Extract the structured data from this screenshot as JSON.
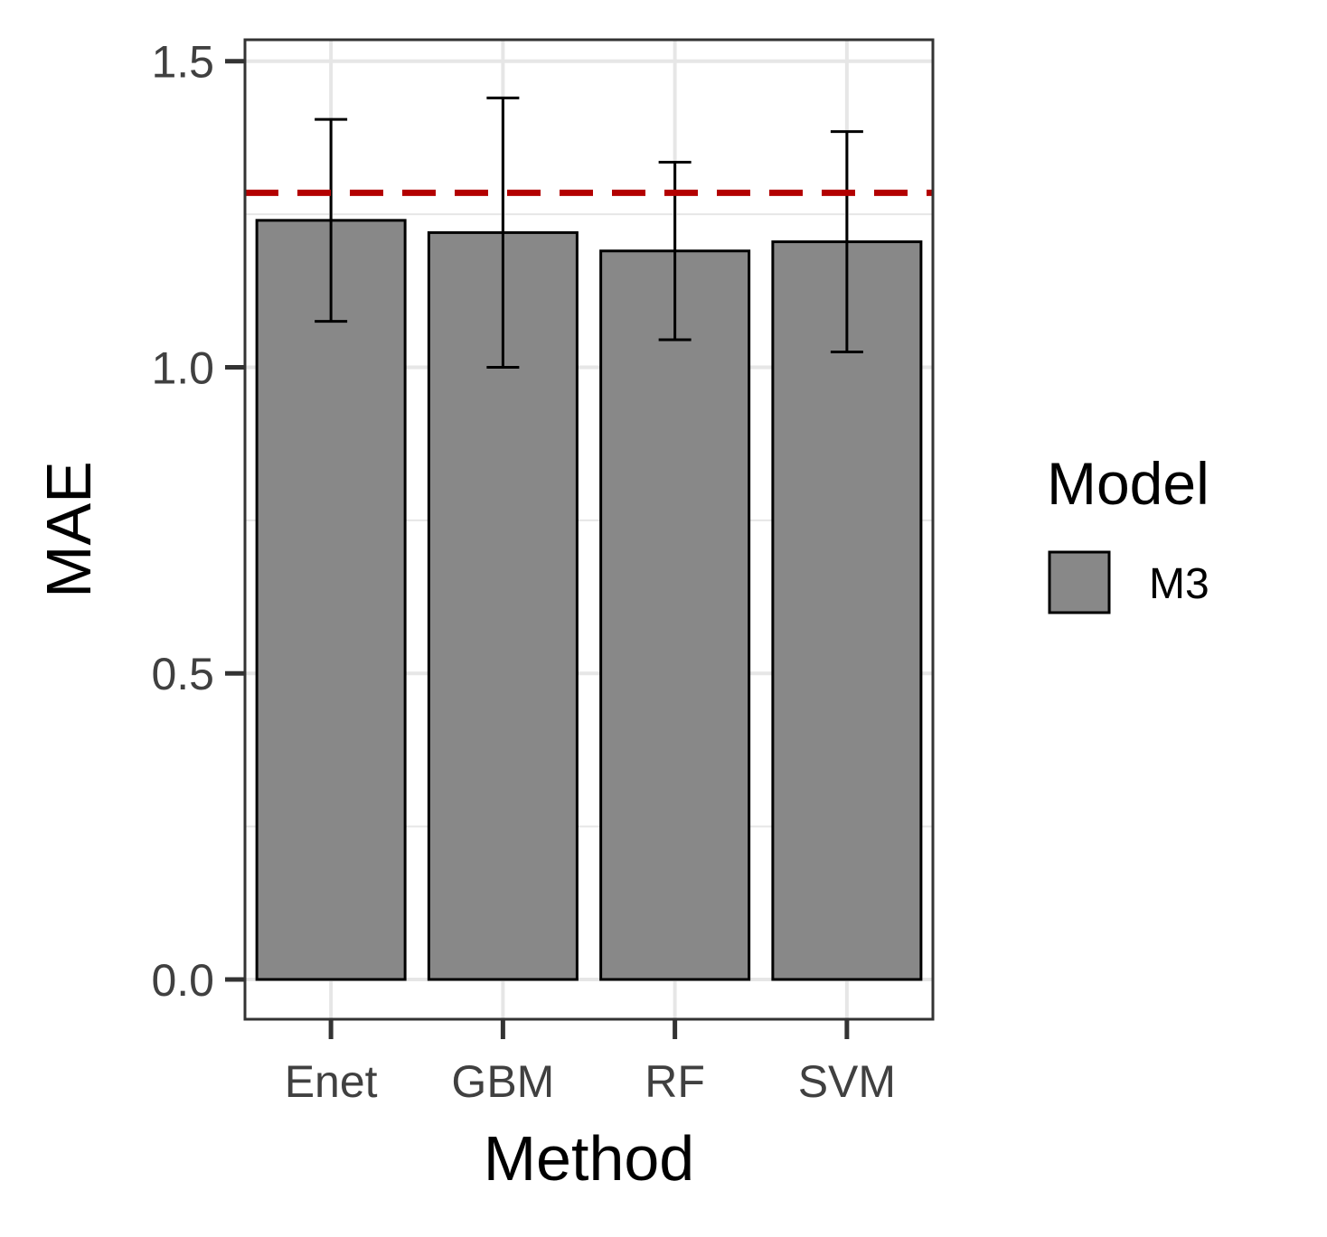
{
  "chart_data": {
    "type": "bar",
    "categories": [
      "Enet",
      "GBM",
      "RF",
      "SVM"
    ],
    "series": [
      {
        "name": "M3",
        "values": [
          1.24,
          1.22,
          1.19,
          1.205
        ],
        "error_low": [
          1.075,
          1.0,
          1.045,
          1.025
        ],
        "error_high": [
          1.405,
          1.44,
          1.335,
          1.385
        ]
      }
    ],
    "reference_line": 1.285,
    "xlabel": "Method",
    "ylabel": "MAE",
    "ylim": [
      -0.065,
      1.535
    ],
    "yticks": [
      0.0,
      0.5,
      1.0,
      1.5
    ],
    "ytick_labels": [
      "0.0",
      "0.5",
      "1.0",
      "1.5"
    ],
    "grid": true,
    "legend": {
      "title": "Model",
      "position": "right"
    },
    "colors": {
      "bar_fill": "#888888",
      "bar_stroke": "#000000",
      "reference_line": "#b30000",
      "grid": "#e6e6e6",
      "panel_border": "#333333"
    }
  }
}
